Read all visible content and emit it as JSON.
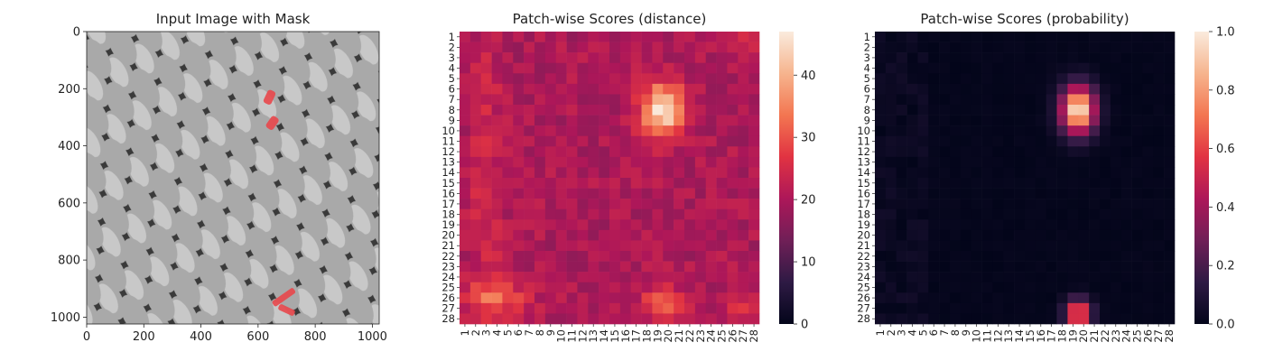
{
  "colors": {
    "mask": "#e8474b",
    "rocket_stops": [
      "#03051a",
      "#2e1a44",
      "#701f57",
      "#ad1759",
      "#e13342",
      "#f37651",
      "#f6b48e",
      "#faebdd"
    ]
  },
  "charts": [
    {
      "type": "image",
      "title": "Input Image with Mask",
      "xticks": [
        "0",
        "200",
        "400",
        "600",
        "800",
        "1000"
      ],
      "yticks": [
        "0",
        "200",
        "400",
        "600",
        "800",
        "1000"
      ],
      "xlim": [
        0,
        1024
      ],
      "ylim": [
        0,
        1024
      ],
      "texture": "diagonal diamond mesh, grayscale",
      "mask_regions": [
        {
          "x": 640,
          "y": 230,
          "w": 30,
          "h": 50,
          "rot": 25
        },
        {
          "x": 650,
          "y": 320,
          "w": 30,
          "h": 48,
          "rot": 35
        },
        {
          "x": 690,
          "y": 930,
          "w": 90,
          "h": 22,
          "rot": -35
        },
        {
          "x": 700,
          "y": 975,
          "w": 60,
          "h": 22,
          "rot": 25
        }
      ]
    },
    {
      "type": "heatmap",
      "title": "Patch-wise Scores (distance)",
      "rows": 28,
      "cols": 28,
      "row_labels": [
        "1",
        "2",
        "3",
        "4",
        "5",
        "6",
        "7",
        "8",
        "9",
        "10",
        "11",
        "12",
        "13",
        "14",
        "15",
        "16",
        "17",
        "18",
        "19",
        "20",
        "21",
        "22",
        "23",
        "24",
        "25",
        "26",
        "27",
        "28"
      ],
      "col_labels": [
        "1",
        "2",
        "3",
        "4",
        "5",
        "6",
        "7",
        "8",
        "9",
        "10",
        "11",
        "12",
        "13",
        "14",
        "15",
        "16",
        "17",
        "18",
        "19",
        "20",
        "21",
        "22",
        "23",
        "24",
        "25",
        "26",
        "27",
        "28"
      ],
      "colorbar_ticks": [
        "0",
        "10",
        "20",
        "30",
        "40"
      ],
      "vmin": 0,
      "vmax": 47,
      "baseline": 20,
      "hotspots": [
        {
          "row": 8,
          "col": 19.5,
          "peak": 46,
          "sx": 1.4,
          "sy": 1.8
        },
        {
          "row": 26.5,
          "col": 19.5,
          "peak": 31,
          "sx": 1.5,
          "sy": 1.0
        },
        {
          "row": 15,
          "col": 3,
          "peak": 25,
          "sx": 1.0,
          "sy": 11.0
        },
        {
          "row": 26,
          "col": 4,
          "peak": 30,
          "sx": 2.2,
          "sy": 1.2
        },
        {
          "row": 27,
          "col": 27,
          "peak": 27,
          "sx": 1.0,
          "sy": 1.0
        },
        {
          "row": 1,
          "col": 27,
          "peak": 25,
          "sx": 1.2,
          "sy": 1.2
        }
      ]
    },
    {
      "type": "heatmap",
      "title": "Patch-wise Scores (probability)",
      "rows": 28,
      "cols": 28,
      "row_labels": [
        "1",
        "2",
        "3",
        "4",
        "5",
        "6",
        "7",
        "8",
        "9",
        "10",
        "11",
        "12",
        "13",
        "14",
        "15",
        "16",
        "17",
        "18",
        "19",
        "20",
        "21",
        "22",
        "23",
        "24",
        "25",
        "26",
        "27",
        "28"
      ],
      "col_labels": [
        "1",
        "2",
        "3",
        "4",
        "5",
        "6",
        "7",
        "8",
        "9",
        "10",
        "11",
        "12",
        "13",
        "14",
        "15",
        "16",
        "17",
        "18",
        "19",
        "20",
        "21",
        "22",
        "23",
        "24",
        "25",
        "26",
        "27",
        "28"
      ],
      "colorbar_ticks": [
        "0.0",
        "0.2",
        "0.4",
        "0.6",
        "0.8",
        "1.0"
      ],
      "vmin": 0,
      "vmax": 1,
      "baseline": 0,
      "hotspots": [
        {
          "row": 8,
          "col": 19.5,
          "peak": 1.0,
          "sx": 1.1,
          "sy": 1.6
        },
        {
          "row": 27.5,
          "col": 19.5,
          "peak": 0.75,
          "sx": 0.8,
          "sy": 0.9
        }
      ]
    }
  ]
}
